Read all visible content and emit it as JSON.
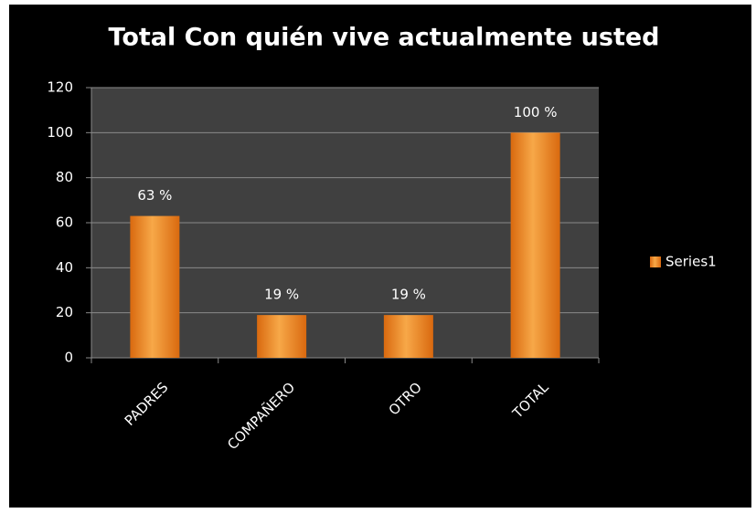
{
  "chart_data": {
    "type": "bar",
    "title": "Total Con quién vive actualmente usted",
    "categories": [
      "PADRES",
      "COMPAÑERO",
      "OTRO",
      "TOTAL"
    ],
    "series": [
      {
        "name": "Series1",
        "color": "#f29a3a",
        "values": [
          63,
          19,
          19,
          100
        ],
        "value_labels": [
          "63 %",
          "19 %",
          "19 %",
          "100 %"
        ]
      }
    ],
    "ylim": [
      0,
      120
    ],
    "yticks": [
      0,
      20,
      40,
      60,
      80,
      100,
      120
    ],
    "grid": true,
    "legend": "right"
  }
}
